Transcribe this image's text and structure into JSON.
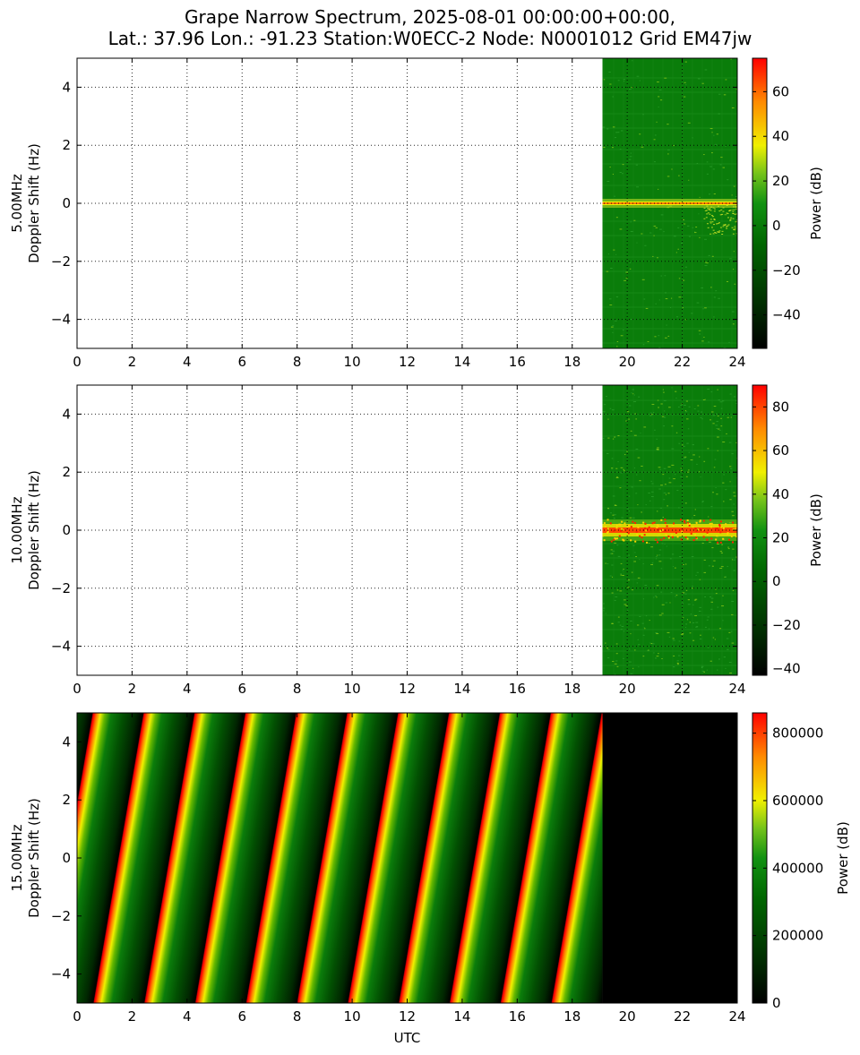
{
  "title": {
    "line1": "Grape Narrow Spectrum, 2025-08-01 00:00:00+00:00,",
    "line2": "Lat.: 37.96 Lon.: -91.23 Station:W0ECC-2 Node: N0001012 Grid EM47jw"
  },
  "chart_data": [
    {
      "type": "heatmap",
      "ylabel_line1": "5.00MHz",
      "ylabel_line2": "Doppler Shift (Hz)",
      "xlabel": "",
      "xlim": [
        0,
        24
      ],
      "ylim": [
        -5,
        5
      ],
      "xticks": [
        "0",
        "2",
        "4",
        "6",
        "8",
        "10",
        "12",
        "14",
        "16",
        "18",
        "20",
        "22",
        "24"
      ],
      "yticks": [
        "4",
        "2",
        "0",
        "−2",
        "−4"
      ],
      "grid": true,
      "data_start_utc": 19.1,
      "data_end_utc": 24,
      "pattern": "carrier_band",
      "carrier_hz": 0.0,
      "carrier_intensity": "yellow",
      "background_intensity": "green",
      "colorbar": {
        "label": "Power (dB)",
        "range": [
          -55,
          75
        ],
        "ticks": [
          "60",
          "40",
          "20",
          "0",
          "−20",
          "−40"
        ]
      }
    },
    {
      "type": "heatmap",
      "ylabel_line1": "10.00MHz",
      "ylabel_line2": "Doppler Shift (Hz)",
      "xlabel": "",
      "xlim": [
        0,
        24
      ],
      "ylim": [
        -5,
        5
      ],
      "xticks": [
        "0",
        "2",
        "4",
        "6",
        "8",
        "10",
        "12",
        "14",
        "16",
        "18",
        "20",
        "22",
        "24"
      ],
      "yticks": [
        "4",
        "2",
        "0",
        "−2",
        "−4"
      ],
      "grid": true,
      "data_start_utc": 19.1,
      "data_end_utc": 24,
      "pattern": "carrier_band",
      "carrier_hz": 0.0,
      "carrier_intensity": "red",
      "background_intensity": "green",
      "colorbar": {
        "label": "Power (dB)",
        "range": [
          -43,
          90
        ],
        "ticks": [
          "80",
          "60",
          "40",
          "20",
          "0",
          "−20",
          "−40"
        ]
      }
    },
    {
      "type": "heatmap",
      "ylabel_line1": "15.00MHz",
      "ylabel_line2": "Doppler Shift (Hz)",
      "xlabel": "UTC",
      "xlim": [
        0,
        24
      ],
      "ylim": [
        -5,
        5
      ],
      "xticks": [
        "0",
        "2",
        "4",
        "6",
        "8",
        "10",
        "12",
        "14",
        "16",
        "18",
        "20",
        "22",
        "24"
      ],
      "yticks": [
        "4",
        "2",
        "0",
        "−2",
        "−4"
      ],
      "grid": false,
      "data_start_utc": 0,
      "data_end_utc": 19.1,
      "after_data_fill": "black",
      "pattern": "diagonal_stripes",
      "stripe_period_hours": 1.85,
      "colorbar": {
        "label": "Power (dB)",
        "range": [
          0,
          860000
        ],
        "ticks": [
          "800000",
          "600000",
          "400000",
          "200000",
          "0"
        ]
      }
    }
  ]
}
